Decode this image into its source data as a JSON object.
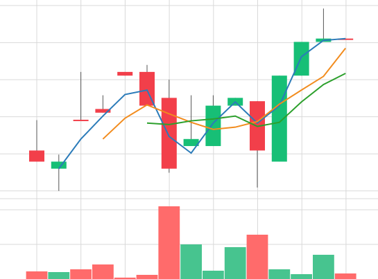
{
  "chart_data": [
    {
      "type": "candlestick",
      "categories": [
        null,
        null,
        null,
        null,
        null,
        null,
        null,
        null,
        null,
        null,
        null,
        null,
        null,
        null,
        null
      ],
      "open": [
        20.9,
        16.0,
        29.2,
        32.1,
        42.1,
        42.1,
        35.1,
        22.1,
        22.1,
        33.0,
        34.2,
        17.9,
        41.1,
        50.2,
        51.1
      ],
      "high": [
        29.1,
        19.8,
        42.1,
        35.8,
        42.1,
        44.0,
        40.0,
        35.8,
        35.8,
        35.1,
        34.2,
        41.1,
        50.2,
        59.2,
        51.1
      ],
      "low": [
        17.9,
        10.0,
        28.9,
        31.1,
        41.1,
        33.0,
        14.9,
        22.1,
        22.1,
        33.0,
        10.9,
        17.9,
        41.1,
        50.2,
        51.0
      ],
      "close": [
        17.9,
        17.9,
        28.9,
        31.1,
        41.1,
        33.0,
        16.0,
        24.0,
        33.0,
        35.1,
        20.9,
        41.1,
        50.2,
        51.1,
        51.0
      ],
      "up_color": "#17bf76",
      "down_color": "#f23f4a",
      "series": [
        {
          "color": "#2b7bb9",
          "values": [
            null,
            16.0,
            24.0,
            30.2,
            36.0,
            37.2,
            24.7,
            20.2,
            28.3,
            34.0,
            28.3,
            33.0,
            46.2,
            50.6,
            51.1
          ]
        },
        {
          "color": "#f28c1e",
          "values": [
            null,
            null,
            null,
            24.0,
            29.6,
            33.2,
            30.8,
            28.5,
            26.6,
            27.2,
            28.7,
            33.4,
            37.2,
            40.9,
            48.5
          ]
        },
        {
          "color": "#2ca02c",
          "values": [
            null,
            null,
            null,
            null,
            null,
            28.3,
            27.9,
            28.9,
            29.4,
            30.2,
            27.4,
            28.5,
            34.0,
            38.7,
            41.7
          ]
        }
      ],
      "ylim": [
        7.9,
        61.5
      ],
      "yticks": [
        10,
        20,
        30,
        40,
        50,
        60
      ],
      "grid": true
    },
    {
      "type": "bar",
      "categories": [
        null,
        null,
        null,
        null,
        null,
        null,
        null,
        null,
        null,
        null,
        null,
        null,
        null,
        null,
        null
      ],
      "values": [
        11,
        10,
        14,
        21,
        2,
        6,
        105,
        50,
        12,
        46,
        64,
        14,
        7,
        35,
        8
      ],
      "up_color": "#47c48f",
      "down_color": "#ff6b6b",
      "ylim": [
        0,
        116
      ],
      "yticks": [
        50,
        100
      ],
      "grid": true
    }
  ]
}
